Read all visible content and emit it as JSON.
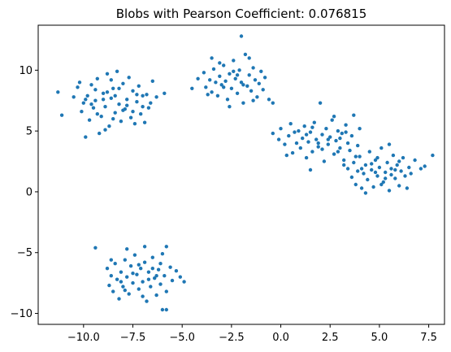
{
  "chart_data": {
    "type": "scatter",
    "title": "Blobs with Pearson Coefficient: 0.076815",
    "xlabel": "",
    "ylabel": "",
    "xlim": [
      -12.3,
      8.3
    ],
    "ylim": [
      -10.9,
      13.7
    ],
    "xticks": [
      -10.0,
      -7.5,
      -5.0,
      -2.5,
      0.0,
      2.5,
      5.0,
      7.5
    ],
    "xtick_labels": [
      "−10.0",
      "−7.5",
      "−5.0",
      "−2.5",
      "0.0",
      "2.5",
      "5.0",
      "7.5"
    ],
    "yticks": [
      -10,
      -5,
      0,
      5,
      10
    ],
    "ytick_labels": [
      "−10",
      "−5",
      "0",
      "5",
      "10"
    ],
    "grid": false,
    "marker_color": "#1f77b4",
    "series": [
      {
        "points": [
          [
            -11.3,
            8.2
          ],
          [
            -11.1,
            6.3
          ],
          [
            -10.5,
            7.8
          ],
          [
            -10.3,
            8.6
          ],
          [
            -10.2,
            9.0
          ],
          [
            -10.1,
            6.6
          ],
          [
            -10.0,
            7.3
          ],
          [
            -9.9,
            4.5
          ],
          [
            -9.8,
            7.9
          ],
          [
            -9.7,
            5.9
          ],
          [
            -9.6,
            8.8
          ],
          [
            -9.5,
            6.9
          ],
          [
            -9.4,
            7.5
          ],
          [
            -9.3,
            9.3
          ],
          [
            -9.2,
            4.8
          ],
          [
            -9.1,
            6.2
          ],
          [
            -9.0,
            8.1
          ],
          [
            -8.9,
            7.0
          ],
          [
            -8.8,
            9.7
          ],
          [
            -8.7,
            5.4
          ],
          [
            -8.6,
            7.7
          ],
          [
            -8.5,
            8.5
          ],
          [
            -8.4,
            6.5
          ],
          [
            -8.3,
            9.9
          ],
          [
            -8.2,
            7.2
          ],
          [
            -8.1,
            5.8
          ],
          [
            -8.0,
            8.9
          ],
          [
            -7.9,
            6.8
          ],
          [
            -7.8,
            7.6
          ],
          [
            -7.7,
            9.4
          ],
          [
            -7.6,
            6.1
          ],
          [
            -7.5,
            8.3
          ],
          [
            -7.4,
            5.6
          ],
          [
            -7.3,
            7.4
          ],
          [
            -7.2,
            8.7
          ],
          [
            -7.1,
            6.4
          ],
          [
            -7.0,
            7.9
          ],
          [
            -6.9,
            5.7
          ],
          [
            -6.8,
            8.0
          ],
          [
            -6.7,
            6.9
          ],
          [
            -6.6,
            7.3
          ],
          [
            -6.5,
            9.1
          ],
          [
            -9.6,
            7.2
          ],
          [
            -9.3,
            6.4
          ],
          [
            -9.0,
            7.6
          ],
          [
            -8.8,
            8.2
          ],
          [
            -8.5,
            6.0
          ],
          [
            -8.2,
            8.5
          ],
          [
            -8.0,
            6.7
          ],
          [
            -7.8,
            7.1
          ],
          [
            -7.5,
            6.6
          ],
          [
            -7.3,
            8.0
          ],
          [
            -7.0,
            7.0
          ],
          [
            -8.9,
            5.1
          ],
          [
            -9.9,
            7.6
          ],
          [
            -6.3,
            7.8
          ],
          [
            -5.9,
            8.1
          ],
          [
            -8.6,
            9.2
          ],
          [
            -9.4,
            8.4
          ],
          [
            -8.4,
            7.9
          ],
          [
            -3.9,
            9.8
          ],
          [
            -3.8,
            8.6
          ],
          [
            -3.6,
            9.2
          ],
          [
            -3.5,
            8.2
          ],
          [
            -3.4,
            10.1
          ],
          [
            -3.3,
            9.0
          ],
          [
            -3.2,
            7.9
          ],
          [
            -3.1,
            9.5
          ],
          [
            -3.0,
            8.8
          ],
          [
            -2.9,
            10.4
          ],
          [
            -2.8,
            9.1
          ],
          [
            -2.7,
            7.6
          ],
          [
            -2.6,
            9.7
          ],
          [
            -2.5,
            8.5
          ],
          [
            -2.4,
            10.8
          ],
          [
            -2.3,
            9.3
          ],
          [
            -2.2,
            8.1
          ],
          [
            -2.1,
            10.0
          ],
          [
            -2.0,
            9.0
          ],
          [
            -1.9,
            7.3
          ],
          [
            -1.8,
            11.3
          ],
          [
            -1.7,
            8.7
          ],
          [
            -1.6,
            9.6
          ],
          [
            -1.5,
            8.3
          ],
          [
            -1.4,
            10.2
          ],
          [
            -1.3,
            9.2
          ],
          [
            -1.2,
            7.8
          ],
          [
            -1.1,
            8.9
          ],
          [
            -1.0,
            9.9
          ],
          [
            -0.9,
            8.4
          ],
          [
            -0.8,
            9.4
          ],
          [
            -0.6,
            7.6
          ],
          [
            -0.4,
            7.3
          ],
          [
            -4.5,
            8.5
          ],
          [
            -4.2,
            9.3
          ],
          [
            -2.0,
            12.8
          ],
          [
            -1.6,
            11.0
          ],
          [
            -3.5,
            11.0
          ],
          [
            -2.6,
            7.0
          ],
          [
            -2.2,
            9.6
          ],
          [
            -2.9,
            8.6
          ],
          [
            -3.7,
            8.0
          ],
          [
            -1.9,
            8.8
          ],
          [
            -2.4,
            9.9
          ],
          [
            -3.1,
            10.6
          ],
          [
            -1.4,
            7.5
          ],
          [
            -0.4,
            4.8
          ],
          [
            -0.1,
            4.3
          ],
          [
            0.0,
            5.2
          ],
          [
            0.2,
            3.9
          ],
          [
            0.4,
            4.6
          ],
          [
            0.5,
            5.6
          ],
          [
            0.6,
            3.2
          ],
          [
            0.8,
            4.0
          ],
          [
            0.9,
            5.0
          ],
          [
            1.0,
            3.6
          ],
          [
            1.1,
            4.4
          ],
          [
            1.2,
            5.4
          ],
          [
            1.3,
            2.8
          ],
          [
            1.4,
            4.1
          ],
          [
            1.5,
            4.9
          ],
          [
            1.6,
            3.3
          ],
          [
            1.7,
            5.7
          ],
          [
            1.8,
            4.3
          ],
          [
            1.9,
            3.7
          ],
          [
            2.0,
            7.3
          ],
          [
            2.1,
            4.7
          ],
          [
            2.2,
            2.5
          ],
          [
            2.3,
            5.2
          ],
          [
            2.4,
            3.9
          ],
          [
            2.5,
            4.5
          ],
          [
            2.6,
            5.9
          ],
          [
            2.7,
            3.1
          ],
          [
            2.8,
            4.2
          ],
          [
            2.9,
            5.0
          ],
          [
            3.0,
            3.6
          ],
          [
            3.1,
            4.8
          ],
          [
            3.2,
            2.2
          ],
          [
            3.3,
            5.5
          ],
          [
            3.4,
            4.0
          ],
          [
            3.5,
            3.4
          ],
          [
            3.6,
            4.6
          ],
          [
            3.7,
            6.3
          ],
          [
            3.8,
            2.9
          ],
          [
            3.9,
            3.8
          ],
          [
            4.0,
            5.2
          ],
          [
            1.5,
            1.8
          ],
          [
            0.3,
            3.0
          ],
          [
            2.7,
            6.2
          ],
          [
            1.9,
            4.0
          ],
          [
            2.4,
            4.3
          ],
          [
            1.3,
            4.7
          ],
          [
            3.0,
            4.4
          ],
          [
            2.1,
            3.5
          ],
          [
            0.7,
            4.9
          ],
          [
            1.6,
            5.3
          ],
          [
            2.9,
            3.3
          ],
          [
            3.3,
            4.9
          ],
          [
            3.2,
            2.6
          ],
          [
            3.4,
            1.9
          ],
          [
            3.6,
            1.2
          ],
          [
            3.7,
            2.4
          ],
          [
            3.8,
            0.6
          ],
          [
            3.9,
            1.7
          ],
          [
            4.0,
            2.9
          ],
          [
            4.1,
            0.3
          ],
          [
            4.2,
            1.5
          ],
          [
            4.3,
            2.2
          ],
          [
            4.4,
            1.0
          ],
          [
            4.5,
            3.3
          ],
          [
            4.6,
            1.8
          ],
          [
            4.7,
            0.4
          ],
          [
            4.8,
            2.6
          ],
          [
            4.9,
            1.3
          ],
          [
            5.0,
            2.0
          ],
          [
            5.1,
            3.6
          ],
          [
            5.2,
            0.8
          ],
          [
            5.3,
            1.6
          ],
          [
            5.4,
            2.4
          ],
          [
            5.5,
            0.1
          ],
          [
            5.6,
            1.9
          ],
          [
            5.7,
            3.0
          ],
          [
            5.8,
            1.1
          ],
          [
            5.9,
            2.2
          ],
          [
            6.0,
            0.5
          ],
          [
            6.1,
            1.7
          ],
          [
            6.2,
            2.8
          ],
          [
            6.3,
            1.3
          ],
          [
            6.4,
            0.3
          ],
          [
            6.5,
            2.0
          ],
          [
            6.6,
            1.5
          ],
          [
            6.8,
            2.6
          ],
          [
            7.1,
            1.9
          ],
          [
            7.3,
            2.1
          ],
          [
            7.7,
            3.0
          ],
          [
            5.5,
            3.9
          ],
          [
            4.3,
            -0.1
          ],
          [
            4.9,
            2.8
          ],
          [
            5.3,
            1.1
          ],
          [
            4.6,
            2.3
          ],
          [
            5.8,
            1.8
          ],
          [
            4.1,
            1.9
          ],
          [
            5.1,
            0.6
          ],
          [
            6.0,
            2.5
          ],
          [
            4.8,
            1.6
          ],
          [
            5.6,
            1.4
          ],
          [
            -9.4,
            -4.6
          ],
          [
            -8.8,
            -6.3
          ],
          [
            -8.7,
            -7.7
          ],
          [
            -8.6,
            -6.9
          ],
          [
            -8.5,
            -8.2
          ],
          [
            -8.4,
            -5.9
          ],
          [
            -8.3,
            -7.2
          ],
          [
            -8.2,
            -8.8
          ],
          [
            -8.1,
            -6.6
          ],
          [
            -8.0,
            -7.8
          ],
          [
            -7.9,
            -5.6
          ],
          [
            -7.8,
            -7.0
          ],
          [
            -7.7,
            -8.4
          ],
          [
            -7.6,
            -6.1
          ],
          [
            -7.5,
            -7.5
          ],
          [
            -7.4,
            -5.2
          ],
          [
            -7.3,
            -6.8
          ],
          [
            -7.2,
            -8.0
          ],
          [
            -7.1,
            -6.3
          ],
          [
            -7.0,
            -7.4
          ],
          [
            -6.9,
            -5.8
          ],
          [
            -6.8,
            -9.0
          ],
          [
            -6.7,
            -6.6
          ],
          [
            -6.6,
            -7.8
          ],
          [
            -6.5,
            -5.4
          ],
          [
            -6.4,
            -7.1
          ],
          [
            -6.3,
            -8.5
          ],
          [
            -6.2,
            -6.4
          ],
          [
            -6.1,
            -7.6
          ],
          [
            -6.0,
            -5.1
          ],
          [
            -5.9,
            -6.9
          ],
          [
            -5.8,
            -8.2
          ],
          [
            -5.6,
            -6.2
          ],
          [
            -5.5,
            -7.3
          ],
          [
            -5.3,
            -6.5
          ],
          [
            -5.1,
            -7.0
          ],
          [
            -4.9,
            -7.4
          ],
          [
            -6.0,
            -9.7
          ],
          [
            -5.8,
            -9.7
          ],
          [
            -7.8,
            -4.7
          ],
          [
            -6.9,
            -4.5
          ],
          [
            -5.8,
            -4.5
          ],
          [
            -7.2,
            -6.0
          ],
          [
            -6.7,
            -7.2
          ],
          [
            -7.5,
            -6.7
          ],
          [
            -6.3,
            -6.9
          ],
          [
            -8.1,
            -7.4
          ],
          [
            -7.0,
            -8.6
          ],
          [
            -6.5,
            -6.3
          ],
          [
            -7.9,
            -8.1
          ],
          [
            -6.1,
            -5.9
          ],
          [
            -8.6,
            -5.6
          ]
        ]
      }
    ]
  }
}
